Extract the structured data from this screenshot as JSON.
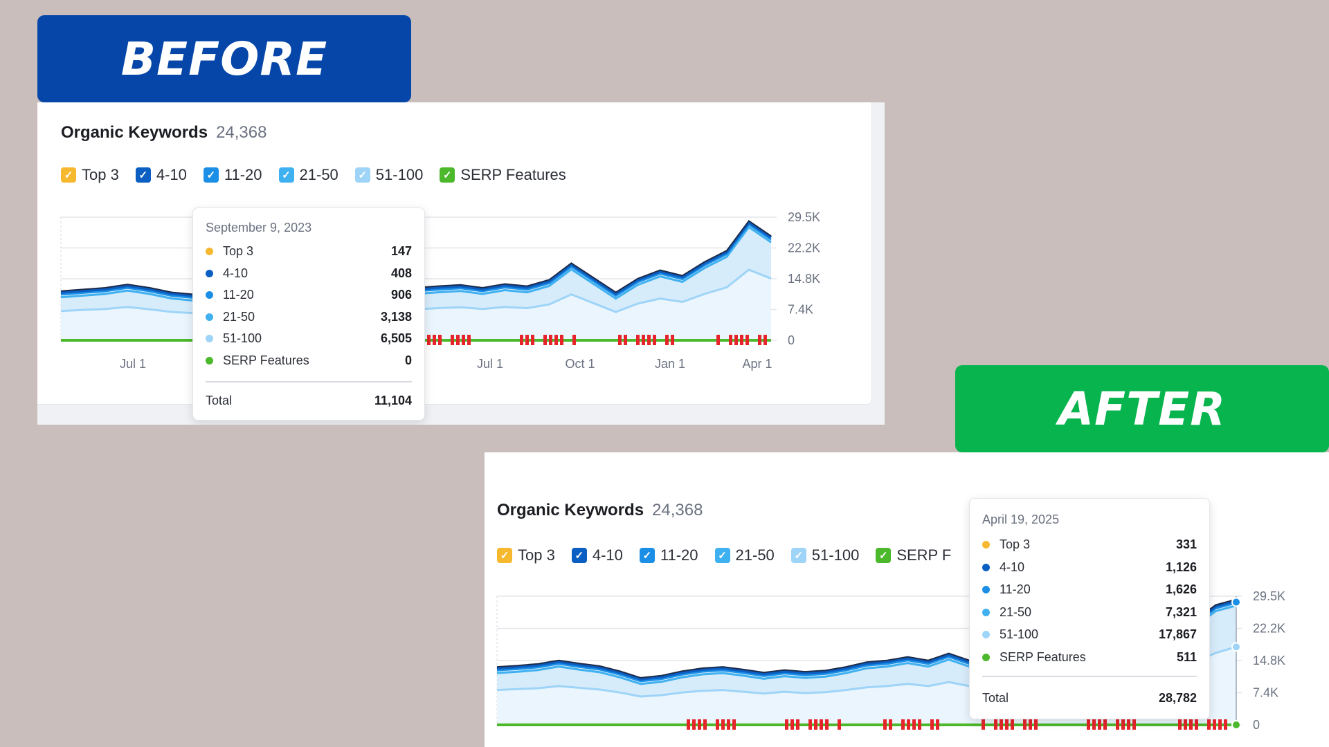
{
  "badges": {
    "before": "BEFORE",
    "after": "AFTER"
  },
  "colors": {
    "top3": "#f5b82e",
    "r4_10": "#0b5fc2",
    "r11_20": "#1b8fe6",
    "r21_50": "#3fb0f0",
    "r51_100": "#9ed4f7",
    "serp": "#4cb82c",
    "marker": "#e5252a"
  },
  "before": {
    "title": "Organic Keywords",
    "count": "24,368",
    "legend": [
      "Top 3",
      "4-10",
      "11-20",
      "21-50",
      "51-100",
      "SERP Features"
    ],
    "tooltip": {
      "date": "September 9, 2023",
      "rows": [
        {
          "label": "Top 3",
          "value": "147"
        },
        {
          "label": "4-10",
          "value": "408"
        },
        {
          "label": "11-20",
          "value": "906"
        },
        {
          "label": "21-50",
          "value": "3,138"
        },
        {
          "label": "51-100",
          "value": "6,505"
        },
        {
          "label": "SERP Features",
          "value": "0"
        }
      ],
      "total_label": "Total",
      "total_value": "11,104"
    }
  },
  "after": {
    "title": "Organic Keywords",
    "count": "24,368",
    "legend": [
      "Top 3",
      "4-10",
      "11-20",
      "21-50",
      "51-100",
      "SERP F"
    ],
    "tooltip": {
      "date": "April 19, 2025",
      "rows": [
        {
          "label": "Top 3",
          "value": "331"
        },
        {
          "label": "4-10",
          "value": "1,126"
        },
        {
          "label": "11-20",
          "value": "1,626"
        },
        {
          "label": "21-50",
          "value": "7,321"
        },
        {
          "label": "51-100",
          "value": "17,867"
        },
        {
          "label": "SERP Features",
          "value": "511"
        }
      ],
      "total_label": "Total",
      "total_value": "28,782"
    }
  },
  "chart_data": [
    {
      "type": "area",
      "title": "Organic Keywords",
      "y_ticks": [
        "29.5K",
        "22.2K",
        "14.8K",
        "7.4K",
        "0"
      ],
      "ylim": [
        0,
        29500
      ],
      "x_tick_labels": [
        "Jul 1",
        "Jul 1",
        "Oct 1",
        "Jan 1",
        "Apr 1"
      ],
      "grid": true,
      "legend_position": "top-left",
      "series_names": [
        "Top 3",
        "4-10",
        "11-20",
        "21-50",
        "51-100",
        "SERP Features"
      ],
      "total_series": [
        11800,
        12200,
        12600,
        13400,
        12600,
        11500,
        11000,
        10800,
        11104,
        11500,
        12300,
        12800,
        13500,
        13000,
        12200,
        13000,
        12600,
        13000,
        13300,
        12600,
        13500,
        13000,
        14500,
        18500,
        15000,
        11500,
        14800,
        16800,
        15500,
        18800,
        21500,
        28600,
        25000
      ],
      "lower_series_51_100": [
        7000,
        7300,
        7500,
        8000,
        7400,
        6800,
        6500,
        6300,
        6505,
        6800,
        7300,
        7600,
        8000,
        7700,
        7200,
        7700,
        7400,
        7700,
        7900,
        7500,
        8000,
        7700,
        8600,
        11000,
        8900,
        6800,
        8800,
        10000,
        9200,
        11100,
        12700,
        16900,
        14800
      ],
      "highlight": {
        "date": "September 9, 2023",
        "index": 8
      }
    },
    {
      "type": "area",
      "title": "Organic Keywords",
      "y_ticks": [
        "29.5K",
        "22.2K",
        "14.8K",
        "7.4K",
        "0"
      ],
      "ylim": [
        0,
        29500
      ],
      "x_tick_labels": [],
      "grid": true,
      "legend_position": "top-left",
      "series_names": [
        "Top 3",
        "4-10",
        "11-20",
        "21-50",
        "51-100",
        "SERP Features"
      ],
      "total_series": [
        13300,
        13600,
        14000,
        14800,
        14100,
        13500,
        12300,
        10800,
        11300,
        12300,
        13000,
        13300,
        12700,
        12000,
        12600,
        12200,
        12500,
        13300,
        14400,
        14800,
        15600,
        14800,
        16400,
        14800,
        15500,
        17000,
        18500,
        17500,
        16500,
        18000,
        19500,
        21000,
        22000,
        23000,
        24000,
        27500,
        28782
      ],
      "lower_series_51_100": [
        8000,
        8200,
        8400,
        8900,
        8500,
        8100,
        7400,
        6500,
        6800,
        7400,
        7800,
        8000,
        7600,
        7200,
        7600,
        7300,
        7500,
        8000,
        8600,
        8900,
        9400,
        8900,
        9800,
        8900,
        9300,
        10200,
        11100,
        10500,
        9900,
        10800,
        11700,
        12600,
        13200,
        13800,
        14400,
        16500,
        17867
      ],
      "highlight": {
        "date": "April 19, 2025",
        "index": 36
      }
    }
  ]
}
